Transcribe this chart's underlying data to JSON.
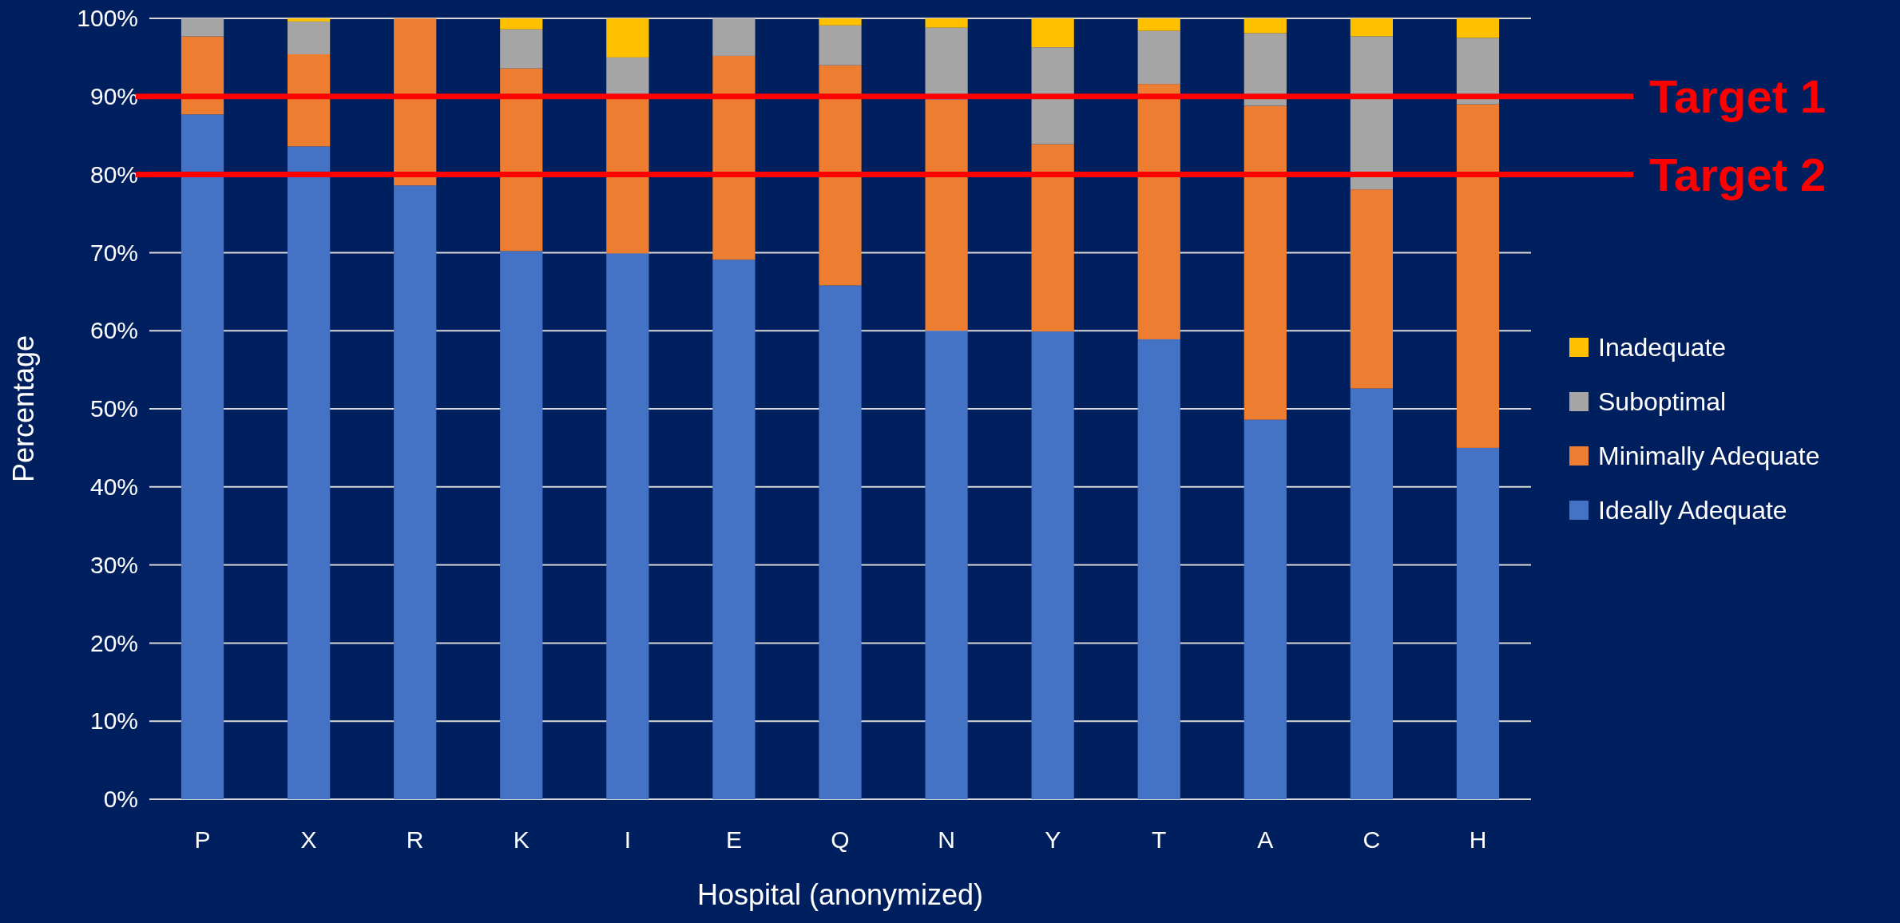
{
  "chart_data": {
    "type": "bar",
    "stacked": true,
    "xlabel": "Hospital (anonymized)",
    "ylabel": "Percentage",
    "categories": [
      "P",
      "X",
      "R",
      "K",
      "I",
      "E",
      "Q",
      "N",
      "Y",
      "T",
      "A",
      "C",
      "H"
    ],
    "series": [
      {
        "name": "Ideally Adequate",
        "color": "#4472c4",
        "values": [
          87.7,
          83.6,
          78.6,
          70.2,
          69.9,
          69.1,
          65.8,
          60.0,
          59.9,
          58.9,
          48.6,
          52.6,
          45.0
        ]
      },
      {
        "name": "Minimally Adequate",
        "color": "#ed7d31",
        "values": [
          10.0,
          11.8,
          21.4,
          23.4,
          20.1,
          26.1,
          28.2,
          29.6,
          24.0,
          32.7,
          40.2,
          25.5,
          44.0
        ]
      },
      {
        "name": "Suboptimal",
        "color": "#a5a5a5",
        "values": [
          2.3,
          4.2,
          0,
          5.0,
          5.0,
          4.8,
          5.1,
          9.2,
          12.4,
          6.8,
          9.3,
          19.6,
          8.5
        ]
      },
      {
        "name": "Inadequate",
        "color": "#ffc000",
        "values": [
          0,
          0.4,
          0,
          1.4,
          5.0,
          0,
          0.9,
          1.2,
          3.7,
          1.6,
          1.9,
          2.3,
          2.5
        ]
      }
    ],
    "ylim": [
      0,
      100
    ],
    "yticks": [
      {
        "value": 0,
        "label": "0%"
      },
      {
        "value": 10,
        "label": "10%"
      },
      {
        "value": 20,
        "label": "20%"
      },
      {
        "value": 30,
        "label": "30%"
      },
      {
        "value": 40,
        "label": "40%"
      },
      {
        "value": 50,
        "label": "50%"
      },
      {
        "value": 60,
        "label": "60%"
      },
      {
        "value": 70,
        "label": "70%"
      },
      {
        "value": 80,
        "label": "80%"
      },
      {
        "value": 90,
        "label": "90%"
      },
      {
        "value": 100,
        "label": "100%"
      }
    ],
    "grid": "y",
    "legend": "right",
    "ref_lines": [
      {
        "axis": "y",
        "value": 90,
        "label": "Target 1",
        "color": "#ff0000"
      },
      {
        "axis": "y",
        "value": 80,
        "label": "Target 2",
        "color": "#ff0000"
      }
    ]
  }
}
